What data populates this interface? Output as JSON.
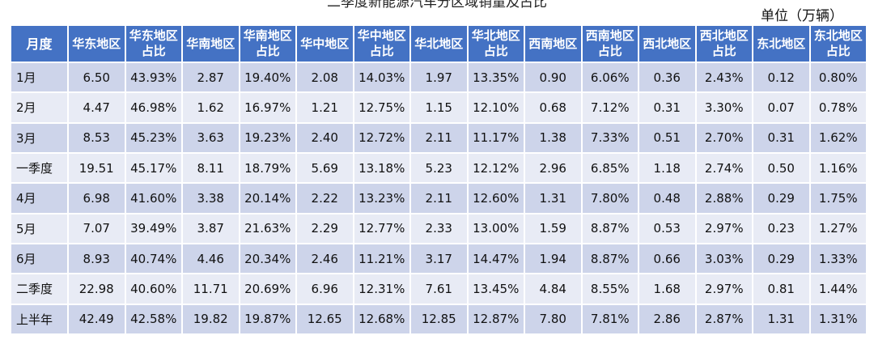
{
  "header": {
    "title": "二季度新能源汽车分区域销量及占比",
    "unit": "单位（万辆）"
  },
  "colors": {
    "header_bg": "#4472c4",
    "row_dark": "#cdd4ea",
    "row_light": "#e8ebf5"
  },
  "chart_data": {
    "type": "table",
    "title": "二季度新能源汽车分区域销量及占比",
    "unit": "单位（万辆）",
    "columns": [
      "月度",
      "华东地区",
      "华东地区占比",
      "华南地区",
      "华南地区占比",
      "华中地区",
      "华中地区占比",
      "华北地区",
      "华北地区占比",
      "西南地区",
      "西南地区占比",
      "西北地区",
      "西北地区占比",
      "东北地区",
      "东北地区占比"
    ],
    "rows": [
      [
        "1月",
        "6.50",
        "43.93%",
        "2.87",
        "19.40%",
        "2.08",
        "14.03%",
        "1.97",
        "13.35%",
        "0.90",
        "6.06%",
        "0.36",
        "2.43%",
        "0.12",
        "0.80%"
      ],
      [
        "2月",
        "4.47",
        "46.98%",
        "1.62",
        "16.97%",
        "1.21",
        "12.75%",
        "1.15",
        "12.10%",
        "0.68",
        "7.12%",
        "0.31",
        "3.30%",
        "0.07",
        "0.78%"
      ],
      [
        "3月",
        "8.53",
        "45.23%",
        "3.63",
        "19.23%",
        "2.40",
        "12.72%",
        "2.11",
        "11.17%",
        "1.38",
        "7.33%",
        "0.51",
        "2.70%",
        "0.31",
        "1.62%"
      ],
      [
        "一季度",
        "19.51",
        "45.17%",
        "8.11",
        "18.79%",
        "5.69",
        "13.18%",
        "5.23",
        "12.12%",
        "2.96",
        "6.85%",
        "1.18",
        "2.74%",
        "0.50",
        "1.16%"
      ],
      [
        "4月",
        "6.98",
        "41.60%",
        "3.38",
        "20.14%",
        "2.22",
        "13.23%",
        "2.11",
        "12.60%",
        "1.31",
        "7.80%",
        "0.48",
        "2.88%",
        "0.29",
        "1.75%"
      ],
      [
        "5月",
        "7.07",
        "39.49%",
        "3.87",
        "21.63%",
        "2.29",
        "12.77%",
        "2.33",
        "13.00%",
        "1.59",
        "8.87%",
        "0.53",
        "2.97%",
        "0.23",
        "1.27%"
      ],
      [
        "6月",
        "8.93",
        "40.74%",
        "4.46",
        "20.34%",
        "2.46",
        "11.21%",
        "3.17",
        "14.47%",
        "1.94",
        "8.87%",
        "0.66",
        "3.03%",
        "0.29",
        "1.33%"
      ],
      [
        "二季度",
        "22.98",
        "40.60%",
        "11.71",
        "20.69%",
        "6.96",
        "12.31%",
        "7.61",
        "13.45%",
        "4.84",
        "8.55%",
        "1.68",
        "2.97%",
        "0.81",
        "1.44%"
      ],
      [
        "上半年",
        "42.49",
        "42.58%",
        "19.82",
        "19.87%",
        "12.65",
        "12.68%",
        "12.85",
        "12.87%",
        "7.80",
        "7.81%",
        "2.86",
        "2.87%",
        "1.31",
        "1.31%"
      ]
    ]
  }
}
